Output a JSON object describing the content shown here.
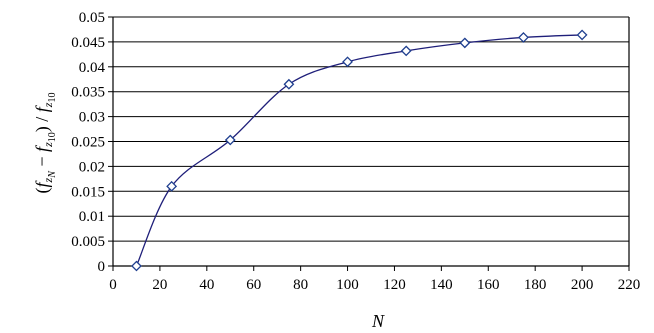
{
  "chart_data": {
    "type": "line",
    "xlabel": "N",
    "ylabel_parts": {
      "open": "(",
      "f1": "f",
      "z1": "z",
      "N": "N",
      "minus": " − ",
      "f2": "f",
      "z2": "z",
      "s2": "10",
      "close": ")",
      "slash": " / ",
      "f3": "f",
      "z3": "z",
      "s3": "10"
    },
    "xlim": [
      0,
      220
    ],
    "ylim": [
      0,
      0.05
    ],
    "x_ticks": [
      0,
      20,
      40,
      60,
      80,
      100,
      120,
      140,
      160,
      180,
      200,
      220
    ],
    "x_tick_labels": [
      "0",
      "20",
      "40",
      "60",
      "80",
      "100",
      "120",
      "140",
      "160",
      "180",
      "200",
      "220"
    ],
    "y_ticks": [
      0,
      0.005,
      0.01,
      0.015,
      0.02,
      0.025,
      0.03,
      0.035,
      0.04,
      0.045,
      0.05
    ],
    "y_tick_labels": [
      "0",
      "0.005",
      "0.01",
      "0.015",
      "0.02",
      "0.025",
      "0.03",
      "0.035",
      "0.04",
      "0.045",
      "0.05"
    ],
    "grid": "horizontal",
    "marker": "diamond",
    "series": [
      {
        "x": [
          10,
          25,
          50,
          75,
          100,
          125,
          150,
          175,
          200
        ],
        "y": [
          0.0,
          0.016,
          0.0253,
          0.0365,
          0.041,
          0.0432,
          0.0448,
          0.0459,
          0.0464
        ]
      }
    ],
    "colors": {
      "line": "#1f1f7a",
      "marker_stroke": "#1f3f8f",
      "grid": "#000000"
    }
  }
}
